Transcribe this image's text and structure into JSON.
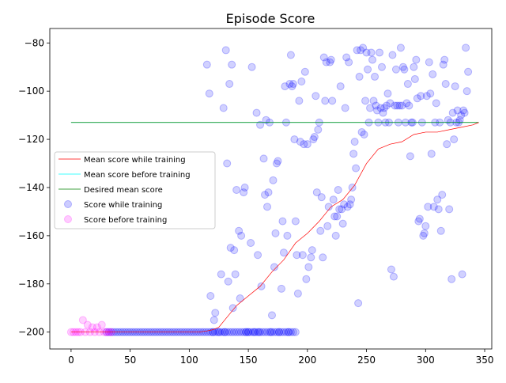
{
  "chart_data": {
    "type": "scatter",
    "title": "Episode Score",
    "xlabel": "",
    "ylabel": "",
    "xlim": [
      -18,
      356
    ],
    "ylim": [
      -207,
      -74
    ],
    "x_ticks": [
      0,
      50,
      100,
      150,
      200,
      250,
      300,
      350
    ],
    "y_ticks": [
      -200,
      -180,
      -160,
      -140,
      -120,
      -100,
      -80
    ],
    "grid": false,
    "legend_position": "center-left",
    "colors": {
      "mean_while_training": "#ff0000",
      "mean_before_training": "#00ffff",
      "desired_mean": "#008000",
      "score_while_training": "#0000ff",
      "score_before_training": "#ff00ff"
    },
    "series": [
      {
        "name": "Mean score while training",
        "kind": "line",
        "x": [
          0,
          100,
          108,
          115,
          120,
          125,
          130,
          140,
          150,
          160,
          170,
          180,
          190,
          200,
          210,
          220,
          230,
          240,
          250,
          260,
          270,
          280,
          290,
          300,
          310,
          320,
          330,
          340,
          345
        ],
        "y": [
          -200,
          -200,
          -200,
          -199.5,
          -199,
          -198,
          -195,
          -189,
          -185,
          -181,
          -175,
          -170,
          -163,
          -159,
          -154,
          -148,
          -145,
          -139,
          -130,
          -124,
          -122,
          -121,
          -118,
          -117,
          -117,
          -116,
          -115,
          -114,
          -113
        ]
      },
      {
        "name": "Mean score before training",
        "kind": "line",
        "x": [
          0,
          345
        ],
        "y": [
          -113,
          -113
        ]
      },
      {
        "name": "Desired mean score",
        "kind": "line",
        "x": [
          0,
          345
        ],
        "y": [
          -113,
          -113
        ]
      },
      {
        "name": "Score while training",
        "kind": "scatter",
        "points": [
          [
            115,
            -89
          ],
          [
            117,
            -101
          ],
          [
            118,
            -185
          ],
          [
            120,
            -200
          ],
          [
            121,
            -195
          ],
          [
            122,
            -192
          ],
          [
            125,
            -200
          ],
          [
            127,
            -176
          ],
          [
            129,
            -107
          ],
          [
            130,
            -200
          ],
          [
            131,
            -83
          ],
          [
            132,
            -130
          ],
          [
            133,
            -179
          ],
          [
            134,
            -97
          ],
          [
            135,
            -165
          ],
          [
            136,
            -89
          ],
          [
            137,
            -190
          ],
          [
            138,
            -166
          ],
          [
            139,
            -176
          ],
          [
            140,
            -141
          ],
          [
            142,
            -158
          ],
          [
            143,
            -186
          ],
          [
            144,
            -160
          ],
          [
            146,
            -142
          ],
          [
            147,
            -140
          ],
          [
            148,
            -200
          ],
          [
            150,
            -200
          ],
          [
            152,
            -163
          ],
          [
            153,
            -90
          ],
          [
            155,
            -200
          ],
          [
            157,
            -109
          ],
          [
            158,
            -168
          ],
          [
            159,
            -200
          ],
          [
            160,
            -114
          ],
          [
            161,
            -181
          ],
          [
            163,
            -128
          ],
          [
            164,
            -143
          ],
          [
            165,
            -112
          ],
          [
            166,
            -148
          ],
          [
            167,
            -142
          ],
          [
            168,
            -113
          ],
          [
            169,
            -200
          ],
          [
            170,
            -193
          ],
          [
            171,
            -137
          ],
          [
            172,
            -173
          ],
          [
            173,
            -159
          ],
          [
            174,
            -130
          ],
          [
            175,
            -129
          ],
          [
            176,
            -200
          ],
          [
            178,
            -182
          ],
          [
            179,
            -154
          ],
          [
            180,
            -167
          ],
          [
            181,
            -98
          ],
          [
            182,
            -113
          ],
          [
            183,
            -160
          ],
          [
            184,
            -200
          ],
          [
            185,
            -97
          ],
          [
            186,
            -85
          ],
          [
            187,
            -98
          ],
          [
            188,
            -97
          ],
          [
            189,
            -120
          ],
          [
            190,
            -154
          ],
          [
            191,
            -168
          ],
          [
            192,
            -184
          ],
          [
            193,
            -104
          ],
          [
            194,
            -121
          ],
          [
            195,
            -96
          ],
          [
            196,
            -168
          ],
          [
            197,
            -122
          ],
          [
            198,
            -92
          ],
          [
            199,
            -178
          ],
          [
            200,
            -122
          ],
          [
            201,
            -173
          ],
          [
            203,
            -169
          ],
          [
            204,
            -166
          ],
          [
            205,
            -120
          ],
          [
            206,
            -119
          ],
          [
            207,
            -102
          ],
          [
            208,
            -142
          ],
          [
            209,
            -116
          ],
          [
            210,
            -113
          ],
          [
            211,
            -158
          ],
          [
            212,
            -144
          ],
          [
            213,
            -169
          ],
          [
            214,
            -86
          ],
          [
            215,
            -104
          ],
          [
            216,
            -88
          ],
          [
            217,
            -156
          ],
          [
            218,
            -148
          ],
          [
            219,
            -88
          ],
          [
            220,
            -87
          ],
          [
            221,
            -104
          ],
          [
            222,
            -145
          ],
          [
            223,
            -152
          ],
          [
            224,
            -160
          ],
          [
            225,
            -152
          ],
          [
            226,
            -141
          ],
          [
            227,
            -149
          ],
          [
            228,
            -98
          ],
          [
            229,
            -149
          ],
          [
            230,
            -155
          ],
          [
            231,
            -147
          ],
          [
            232,
            -107
          ],
          [
            233,
            -86
          ],
          [
            234,
            -148
          ],
          [
            235,
            -88
          ],
          [
            236,
            -147
          ],
          [
            237,
            -145
          ],
          [
            238,
            -140
          ],
          [
            239,
            -126
          ],
          [
            240,
            -121
          ],
          [
            241,
            -132
          ],
          [
            242,
            -83
          ],
          [
            243,
            -188
          ],
          [
            244,
            -94
          ],
          [
            245,
            -83
          ],
          [
            246,
            -117
          ],
          [
            247,
            -82
          ],
          [
            248,
            -118
          ],
          [
            249,
            -104
          ],
          [
            250,
            -84
          ],
          [
            251,
            -91
          ],
          [
            252,
            -113
          ],
          [
            253,
            -107
          ],
          [
            254,
            -84
          ],
          [
            255,
            -87
          ],
          [
            256,
            -104
          ],
          [
            257,
            -94
          ],
          [
            258,
            -106
          ],
          [
            259,
            -108
          ],
          [
            260,
            -113
          ],
          [
            261,
            -84
          ],
          [
            262,
            -107
          ],
          [
            263,
            -90
          ],
          [
            264,
            -109
          ],
          [
            265,
            -107
          ],
          [
            266,
            -113
          ],
          [
            267,
            -106
          ],
          [
            268,
            -101
          ],
          [
            269,
            -113
          ],
          [
            270,
            -105
          ],
          [
            271,
            -174
          ],
          [
            272,
            -85
          ],
          [
            273,
            -177
          ],
          [
            274,
            -106
          ],
          [
            275,
            -91
          ],
          [
            276,
            -106
          ],
          [
            277,
            -113
          ],
          [
            278,
            -106
          ],
          [
            279,
            -82
          ],
          [
            280,
            -106
          ],
          [
            281,
            -90
          ],
          [
            282,
            -91
          ],
          [
            283,
            -113
          ],
          [
            284,
            -105
          ],
          [
            285,
            -97
          ],
          [
            286,
            -106
          ],
          [
            287,
            -127
          ],
          [
            288,
            -113
          ],
          [
            289,
            -113
          ],
          [
            290,
            -90
          ],
          [
            291,
            -95
          ],
          [
            292,
            -87
          ],
          [
            293,
            -103
          ],
          [
            294,
            -154
          ],
          [
            295,
            -153
          ],
          [
            296,
            -102
          ],
          [
            297,
            -113
          ],
          [
            298,
            -160
          ],
          [
            299,
            -159
          ],
          [
            300,
            -156
          ],
          [
            301,
            -102
          ],
          [
            302,
            -148
          ],
          [
            303,
            -88
          ],
          [
            304,
            -101
          ],
          [
            305,
            -126
          ],
          [
            306,
            -93
          ],
          [
            307,
            -148
          ],
          [
            308,
            -113
          ],
          [
            309,
            -105
          ],
          [
            310,
            -145
          ],
          [
            311,
            -149
          ],
          [
            312,
            -113
          ],
          [
            313,
            -158
          ],
          [
            314,
            -143
          ],
          [
            315,
            -89
          ],
          [
            316,
            -87
          ],
          [
            317,
            -97
          ],
          [
            318,
            -122
          ],
          [
            319,
            -112
          ],
          [
            320,
            -149
          ],
          [
            321,
            -113
          ],
          [
            322,
            -178
          ],
          [
            323,
            -109
          ],
          [
            324,
            -120
          ],
          [
            325,
            -98
          ],
          [
            326,
            -113
          ],
          [
            327,
            -108
          ],
          [
            328,
            -113
          ],
          [
            329,
            -112
          ],
          [
            330,
            -110
          ],
          [
            331,
            -176
          ],
          [
            332,
            -108
          ],
          [
            333,
            -109
          ],
          [
            334,
            -82
          ],
          [
            335,
            -100
          ],
          [
            336,
            -92
          ]
        ]
      },
      {
        "name": "Score before training",
        "kind": "scatter",
        "points": [
          [
            0,
            -200
          ],
          [
            2,
            -200
          ],
          [
            4,
            -200
          ],
          [
            6,
            -200
          ],
          [
            8,
            -200
          ],
          [
            10,
            -195
          ],
          [
            12,
            -200
          ],
          [
            14,
            -197
          ],
          [
            16,
            -200
          ],
          [
            18,
            -198
          ],
          [
            20,
            -200
          ],
          [
            22,
            -198
          ],
          [
            24,
            -200
          ],
          [
            26,
            -197
          ],
          [
            28,
            -200
          ],
          [
            30,
            -200
          ],
          [
            32,
            -200
          ],
          [
            34,
            -200
          ]
        ]
      },
      {
        "name": "Score while training",
        "kind": "baseline-run",
        "x_from": 30,
        "x_to": 190,
        "step": 2,
        "y": -200
      }
    ]
  }
}
